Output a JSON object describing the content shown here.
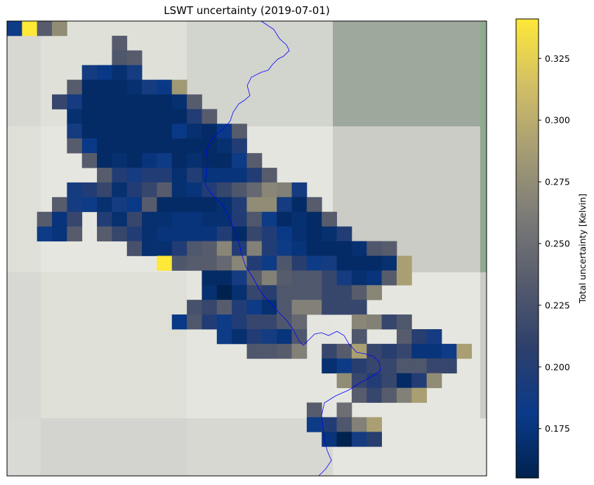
{
  "chart_data": {
    "type": "heatmap",
    "title": "LSWT uncertainty (2019-07-01)",
    "colorbar": {
      "label": "Total uncertainty [Kelvin]",
      "colormap": "cividis",
      "range": [
        0.155,
        0.341
      ],
      "ticks": [
        "0.175",
        "0.200",
        "0.225",
        "0.250",
        "0.275",
        "0.300",
        "0.325"
      ],
      "tick_values": [
        0.175,
        0.2,
        0.225,
        0.25,
        0.275,
        0.3,
        0.325
      ],
      "colors": [
        "#00224e",
        "#0a3a8a",
        "#2c3f6b",
        "#575c6d",
        "#7c7b78",
        "#a59c74",
        "#d3c064",
        "#fee838"
      ]
    },
    "grid": {
      "columns": 32,
      "rows": 31
    },
    "background_colors": [
      "#d7d8d1",
      "#dfe1d9",
      "#d2d4ce",
      "#9ea89c",
      "#e6e6e0",
      "#cbccc5",
      "#8faa90",
      "#dedfd7",
      "#e4e5de",
      "#d3d3cf",
      "#d7d8d3",
      "#d9d9d6"
    ],
    "river_color": "#0000ff",
    "cells": [
      [
        0,
        0,
        0.185
      ],
      [
        1,
        0,
        0.341
      ],
      [
        2,
        0,
        0.235
      ],
      [
        3,
        0,
        0.275
      ],
      [
        7,
        1,
        0.235
      ],
      [
        7,
        2,
        0.23
      ],
      [
        8,
        2,
        0.235
      ],
      [
        5,
        3,
        0.19
      ],
      [
        6,
        3,
        0.18
      ],
      [
        7,
        3,
        0.17
      ],
      [
        8,
        3,
        0.19
      ],
      [
        4,
        4,
        0.235
      ],
      [
        5,
        4,
        0.165
      ],
      [
        6,
        4,
        0.165
      ],
      [
        7,
        4,
        0.165
      ],
      [
        8,
        4,
        0.17
      ],
      [
        9,
        4,
        0.19
      ],
      [
        10,
        4,
        0.18
      ],
      [
        11,
        4,
        0.285
      ],
      [
        3,
        5,
        0.215
      ],
      [
        4,
        5,
        0.19
      ],
      [
        5,
        5,
        0.165
      ],
      [
        6,
        5,
        0.165
      ],
      [
        7,
        5,
        0.165
      ],
      [
        8,
        5,
        0.165
      ],
      [
        9,
        5,
        0.165
      ],
      [
        10,
        5,
        0.165
      ],
      [
        11,
        5,
        0.17
      ],
      [
        12,
        5,
        0.235
      ],
      [
        4,
        6,
        0.17
      ],
      [
        5,
        6,
        0.165
      ],
      [
        6,
        6,
        0.165
      ],
      [
        7,
        6,
        0.165
      ],
      [
        8,
        6,
        0.165
      ],
      [
        9,
        6,
        0.165
      ],
      [
        10,
        6,
        0.165
      ],
      [
        11,
        6,
        0.165
      ],
      [
        12,
        6,
        0.2
      ],
      [
        13,
        6,
        0.235
      ],
      [
        4,
        7,
        0.19
      ],
      [
        5,
        7,
        0.165
      ],
      [
        6,
        7,
        0.165
      ],
      [
        7,
        7,
        0.165
      ],
      [
        8,
        7,
        0.165
      ],
      [
        9,
        7,
        0.165
      ],
      [
        10,
        7,
        0.165
      ],
      [
        11,
        7,
        0.18
      ],
      [
        12,
        7,
        0.17
      ],
      [
        13,
        7,
        0.165
      ],
      [
        14,
        7,
        0.18
      ],
      [
        15,
        7,
        0.235
      ],
      [
        4,
        8,
        0.235
      ],
      [
        5,
        8,
        0.18
      ],
      [
        6,
        8,
        0.165
      ],
      [
        7,
        8,
        0.165
      ],
      [
        8,
        8,
        0.165
      ],
      [
        9,
        8,
        0.165
      ],
      [
        10,
        8,
        0.165
      ],
      [
        11,
        8,
        0.165
      ],
      [
        12,
        8,
        0.165
      ],
      [
        13,
        8,
        0.165
      ],
      [
        14,
        8,
        0.17
      ],
      [
        15,
        8,
        0.2
      ],
      [
        5,
        9,
        0.235
      ],
      [
        6,
        9,
        0.165
      ],
      [
        7,
        9,
        0.17
      ],
      [
        8,
        9,
        0.165
      ],
      [
        9,
        9,
        0.175
      ],
      [
        10,
        9,
        0.185
      ],
      [
        11,
        9,
        0.165
      ],
      [
        12,
        9,
        0.17
      ],
      [
        13,
        9,
        0.165
      ],
      [
        14,
        9,
        0.165
      ],
      [
        15,
        9,
        0.185
      ],
      [
        16,
        9,
        0.235
      ],
      [
        6,
        10,
        0.235
      ],
      [
        7,
        10,
        0.2
      ],
      [
        8,
        10,
        0.19
      ],
      [
        9,
        10,
        0.2
      ],
      [
        10,
        10,
        0.2
      ],
      [
        11,
        10,
        0.17
      ],
      [
        12,
        10,
        0.2
      ],
      [
        13,
        10,
        0.175
      ],
      [
        14,
        10,
        0.175
      ],
      [
        15,
        10,
        0.175
      ],
      [
        16,
        10,
        0.2
      ],
      [
        17,
        10,
        0.235
      ],
      [
        4,
        11,
        0.19
      ],
      [
        5,
        11,
        0.2
      ],
      [
        6,
        11,
        0.215
      ],
      [
        7,
        11,
        0.17
      ],
      [
        8,
        11,
        0.2
      ],
      [
        9,
        11,
        0.215
      ],
      [
        10,
        11,
        0.235
      ],
      [
        11,
        11,
        0.17
      ],
      [
        12,
        11,
        0.175
      ],
      [
        13,
        11,
        0.2
      ],
      [
        14,
        11,
        0.215
      ],
      [
        15,
        11,
        0.23
      ],
      [
        16,
        11,
        0.245
      ],
      [
        17,
        11,
        0.27
      ],
      [
        18,
        11,
        0.265
      ],
      [
        19,
        11,
        0.19
      ],
      [
        3,
        12,
        0.235
      ],
      [
        4,
        12,
        0.19
      ],
      [
        5,
        12,
        0.185
      ],
      [
        6,
        12,
        0.17
      ],
      [
        7,
        12,
        0.19
      ],
      [
        8,
        12,
        0.18
      ],
      [
        9,
        12,
        0.235
      ],
      [
        10,
        12,
        0.165
      ],
      [
        11,
        12,
        0.165
      ],
      [
        12,
        12,
        0.165
      ],
      [
        13,
        12,
        0.165
      ],
      [
        14,
        12,
        0.17
      ],
      [
        15,
        12,
        0.2
      ],
      [
        16,
        12,
        0.275
      ],
      [
        17,
        12,
        0.275
      ],
      [
        18,
        12,
        0.19
      ],
      [
        19,
        12,
        0.165
      ],
      [
        20,
        12,
        0.235
      ],
      [
        2,
        13,
        0.235
      ],
      [
        3,
        13,
        0.175
      ],
      [
        4,
        13,
        0.215
      ],
      [
        6,
        13,
        0.2
      ],
      [
        7,
        13,
        0.17
      ],
      [
        8,
        13,
        0.215
      ],
      [
        9,
        13,
        0.17
      ],
      [
        10,
        13,
        0.17
      ],
      [
        11,
        13,
        0.175
      ],
      [
        12,
        13,
        0.175
      ],
      [
        13,
        13,
        0.17
      ],
      [
        14,
        13,
        0.17
      ],
      [
        15,
        13,
        0.2
      ],
      [
        16,
        13,
        0.23
      ],
      [
        17,
        13,
        0.185
      ],
      [
        18,
        13,
        0.165
      ],
      [
        19,
        13,
        0.17
      ],
      [
        20,
        13,
        0.165
      ],
      [
        21,
        13,
        0.235
      ],
      [
        2,
        14,
        0.185
      ],
      [
        3,
        14,
        0.175
      ],
      [
        4,
        14,
        0.235
      ],
      [
        6,
        14,
        0.235
      ],
      [
        7,
        14,
        0.215
      ],
      [
        8,
        14,
        0.2
      ],
      [
        9,
        14,
        0.17
      ],
      [
        10,
        14,
        0.175
      ],
      [
        11,
        14,
        0.175
      ],
      [
        12,
        14,
        0.175
      ],
      [
        13,
        14,
        0.175
      ],
      [
        14,
        14,
        0.2
      ],
      [
        15,
        14,
        0.165
      ],
      [
        16,
        14,
        0.215
      ],
      [
        17,
        14,
        0.2
      ],
      [
        18,
        14,
        0.18
      ],
      [
        19,
        14,
        0.17
      ],
      [
        20,
        14,
        0.165
      ],
      [
        21,
        14,
        0.17
      ],
      [
        22,
        14,
        0.2
      ],
      [
        8,
        15,
        0.225
      ],
      [
        9,
        15,
        0.17
      ],
      [
        10,
        15,
        0.17
      ],
      [
        11,
        15,
        0.2
      ],
      [
        12,
        15,
        0.23
      ],
      [
        13,
        15,
        0.235
      ],
      [
        14,
        15,
        0.27
      ],
      [
        15,
        15,
        0.2
      ],
      [
        16,
        15,
        0.265
      ],
      [
        17,
        15,
        0.2
      ],
      [
        18,
        15,
        0.185
      ],
      [
        19,
        15,
        0.175
      ],
      [
        20,
        15,
        0.165
      ],
      [
        21,
        15,
        0.165
      ],
      [
        22,
        15,
        0.165
      ],
      [
        23,
        15,
        0.17
      ],
      [
        24,
        15,
        0.23
      ],
      [
        25,
        15,
        0.235
      ],
      [
        10,
        16,
        0.341
      ],
      [
        11,
        16,
        0.23
      ],
      [
        12,
        16,
        0.235
      ],
      [
        13,
        16,
        0.235
      ],
      [
        14,
        16,
        0.245
      ],
      [
        15,
        16,
        0.27
      ],
      [
        16,
        16,
        0.2
      ],
      [
        17,
        16,
        0.185
      ],
      [
        18,
        16,
        0.23
      ],
      [
        19,
        16,
        0.205
      ],
      [
        20,
        16,
        0.185
      ],
      [
        21,
        16,
        0.19
      ],
      [
        22,
        16,
        0.165
      ],
      [
        23,
        16,
        0.165
      ],
      [
        24,
        16,
        0.165
      ],
      [
        25,
        16,
        0.17
      ],
      [
        26,
        16,
        0.29
      ],
      [
        13,
        17,
        0.165
      ],
      [
        14,
        17,
        0.165
      ],
      [
        15,
        17,
        0.19
      ],
      [
        16,
        17,
        0.235
      ],
      [
        17,
        17,
        0.265
      ],
      [
        18,
        17,
        0.235
      ],
      [
        19,
        17,
        0.23
      ],
      [
        20,
        17,
        0.23
      ],
      [
        21,
        17,
        0.215
      ],
      [
        22,
        17,
        0.19
      ],
      [
        23,
        17,
        0.17
      ],
      [
        24,
        17,
        0.175
      ],
      [
        25,
        17,
        0.235
      ],
      [
        26,
        17,
        0.29
      ],
      [
        13,
        18,
        0.17
      ],
      [
        14,
        18,
        0.155
      ],
      [
        15,
        18,
        0.17
      ],
      [
        16,
        18,
        0.215
      ],
      [
        17,
        18,
        0.205
      ],
      [
        18,
        18,
        0.23
      ],
      [
        19,
        18,
        0.23
      ],
      [
        20,
        18,
        0.23
      ],
      [
        21,
        18,
        0.215
      ],
      [
        22,
        18,
        0.215
      ],
      [
        23,
        18,
        0.235
      ],
      [
        24,
        18,
        0.27
      ],
      [
        12,
        19,
        0.225
      ],
      [
        13,
        19,
        0.215
      ],
      [
        14,
        19,
        0.235
      ],
      [
        15,
        19,
        0.2
      ],
      [
        16,
        19,
        0.185
      ],
      [
        17,
        19,
        0.17
      ],
      [
        18,
        19,
        0.23
      ],
      [
        19,
        19,
        0.265
      ],
      [
        20,
        19,
        0.265
      ],
      [
        21,
        19,
        0.215
      ],
      [
        22,
        19,
        0.215
      ],
      [
        23,
        19,
        0.215
      ],
      [
        11,
        20,
        0.18
      ],
      [
        12,
        20,
        0.23
      ],
      [
        13,
        20,
        0.2
      ],
      [
        14,
        20,
        0.185
      ],
      [
        15,
        20,
        0.2
      ],
      [
        16,
        20,
        0.215
      ],
      [
        17,
        20,
        0.215
      ],
      [
        18,
        20,
        0.23
      ],
      [
        19,
        20,
        0.245
      ],
      [
        23,
        20,
        0.27
      ],
      [
        24,
        20,
        0.265
      ],
      [
        25,
        20,
        0.215
      ],
      [
        26,
        20,
        0.23
      ],
      [
        14,
        21,
        0.185
      ],
      [
        15,
        21,
        0.17
      ],
      [
        16,
        21,
        0.2
      ],
      [
        17,
        21,
        0.19
      ],
      [
        18,
        21,
        0.175
      ],
      [
        19,
        21,
        0.23
      ],
      [
        23,
        21,
        0.23
      ],
      [
        26,
        21,
        0.235
      ],
      [
        27,
        21,
        0.205
      ],
      [
        28,
        21,
        0.19
      ],
      [
        16,
        22,
        0.23
      ],
      [
        17,
        22,
        0.23
      ],
      [
        18,
        22,
        0.235
      ],
      [
        19,
        22,
        0.265
      ],
      [
        21,
        22,
        0.215
      ],
      [
        22,
        22,
        0.235
      ],
      [
        23,
        22,
        0.29
      ],
      [
        24,
        22,
        0.215
      ],
      [
        25,
        22,
        0.205
      ],
      [
        26,
        22,
        0.215
      ],
      [
        27,
        22,
        0.175
      ],
      [
        28,
        22,
        0.175
      ],
      [
        29,
        22,
        0.185
      ],
      [
        30,
        22,
        0.29
      ],
      [
        21,
        23,
        0.17
      ],
      [
        22,
        23,
        0.185
      ],
      [
        23,
        23,
        0.205
      ],
      [
        24,
        23,
        0.215
      ],
      [
        25,
        23,
        0.215
      ],
      [
        26,
        23,
        0.23
      ],
      [
        27,
        23,
        0.23
      ],
      [
        28,
        23,
        0.215
      ],
      [
        29,
        23,
        0.215
      ],
      [
        22,
        24,
        0.275
      ],
      [
        23,
        24,
        0.215
      ],
      [
        24,
        24,
        0.2
      ],
      [
        25,
        24,
        0.215
      ],
      [
        26,
        24,
        0.165
      ],
      [
        27,
        24,
        0.2
      ],
      [
        28,
        24,
        0.275
      ],
      [
        23,
        25,
        0.235
      ],
      [
        24,
        25,
        0.215
      ],
      [
        25,
        25,
        0.235
      ],
      [
        26,
        25,
        0.265
      ],
      [
        27,
        25,
        0.29
      ],
      [
        20,
        26,
        0.235
      ],
      [
        22,
        26,
        0.25
      ],
      [
        20,
        27,
        0.185
      ],
      [
        21,
        27,
        0.2
      ],
      [
        22,
        27,
        0.23
      ],
      [
        23,
        27,
        0.265
      ],
      [
        24,
        27,
        0.29
      ],
      [
        21,
        28,
        0.175
      ],
      [
        22,
        28,
        0.155
      ],
      [
        23,
        28,
        0.19
      ],
      [
        24,
        28,
        0.205
      ]
    ]
  }
}
